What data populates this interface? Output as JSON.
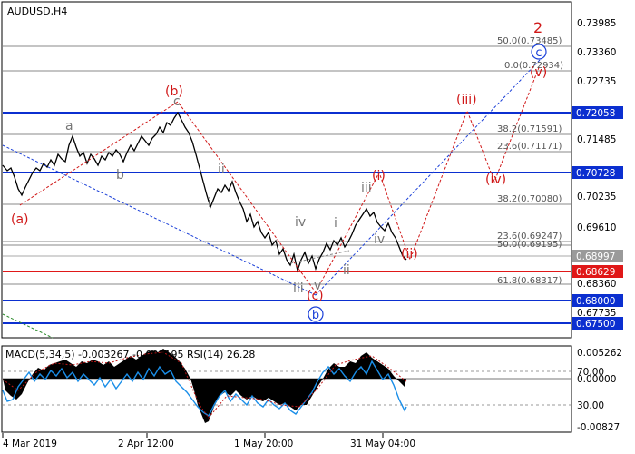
{
  "chart": {
    "symbol": "AUDUSD,H4",
    "indicator_label": "MACD(5,34,5) -0.003267 -0.003195 RSI(14) 26.28",
    "x_labels": [
      "4 Mar 2019",
      "2 Apr 12:00",
      "1 May 20:00",
      "31 May 04:00"
    ],
    "price_labels": [
      "0.73985",
      "0.73360",
      "0.72735",
      "0.71485",
      "0.70235",
      "0.69610",
      "0.68360",
      "0.67735"
    ],
    "level_tags": [
      {
        "value": "0.72058",
        "color": "#0b2fd0"
      },
      {
        "value": "0.70728",
        "color": "#0b2fd0"
      },
      {
        "value": "0.68997",
        "color": "#9a9a9a"
      },
      {
        "value": "0.68629",
        "color": "#e01818"
      },
      {
        "value": "0.68000",
        "color": "#0b2fd0"
      },
      {
        "value": "0.67500",
        "color": "#0b2fd0"
      }
    ],
    "fib_labels": [
      "50.0(0.73485)",
      "0.0(0.72934)",
      "38.2(0.71591)",
      "23.6(0.71171)",
      "38.2(0.70080)",
      "23.6(0.69247)",
      "50.0(0.69195)",
      "61.8(0.68317)"
    ],
    "wave_labels": {
      "grey": [
        "a",
        "b",
        "c",
        "ii",
        "i",
        "iv",
        "iii",
        "v",
        "iii",
        "iv",
        "i",
        "ii"
      ],
      "red": [
        "2",
        "(a)",
        "(b)",
        "(c)",
        "(i)",
        "(ii)",
        "(iii)",
        "(iv)",
        "(v)"
      ],
      "blue": [
        "b",
        "c"
      ]
    },
    "indicator_axis": [
      "0.005262",
      "70.00",
      "0.00000",
      "30.00",
      "-0.00827"
    ],
    "colors": {
      "support_resistance": "#0b2fd0",
      "current_price": "#e01818",
      "wave_red": "#d01818",
      "wave_blue": "#1a3fd8",
      "rsi": "#1a8ee8"
    }
  }
}
